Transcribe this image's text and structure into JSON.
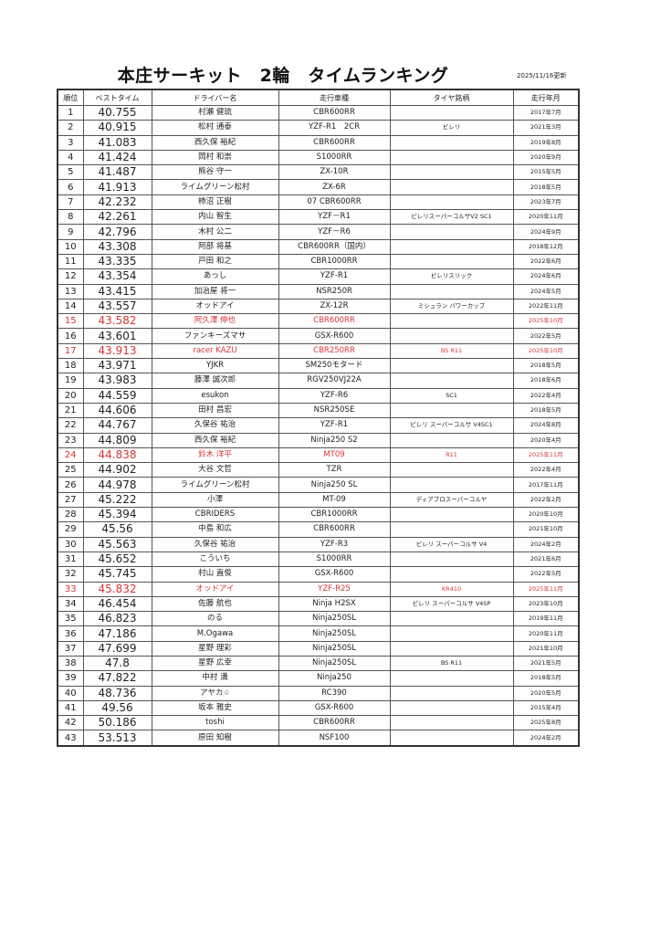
{
  "title": "本庄サーキット　2輪　タイムランキング",
  "updated": "2025/11/16更新",
  "highlight_color": "#d83434",
  "columns": [
    "順位",
    "ベストタイム",
    "ドライバー名",
    "走行車種",
    "タイヤ銘柄",
    "走行年月"
  ],
  "rows": [
    {
      "rank": "1",
      "time": "40.755",
      "driver": "村瀬 健琉",
      "bike": "CBR600RR",
      "tire": "",
      "date": "2017年7月",
      "highlight": false
    },
    {
      "rank": "2",
      "time": "40.915",
      "driver": "松村 通泰",
      "bike": "YZF-R1　2CR",
      "tire": "ピレリ",
      "date": "2021年3月",
      "highlight": false
    },
    {
      "rank": "3",
      "time": "41.083",
      "driver": "西久保 裕紀",
      "bike": "CBR600RR",
      "tire": "",
      "date": "2019年8月",
      "highlight": false
    },
    {
      "rank": "4",
      "time": "41.424",
      "driver": "岡村 和崇",
      "bike": "S1000RR",
      "tire": "",
      "date": "2020年9月",
      "highlight": false
    },
    {
      "rank": "5",
      "time": "41.487",
      "driver": "熊谷 守一",
      "bike": "ZX-10R",
      "tire": "",
      "date": "2015年5月",
      "highlight": false
    },
    {
      "rank": "6",
      "time": "41.913",
      "driver": "ライムグリーン松村",
      "bike": "ZX-6R",
      "tire": "",
      "date": "2018年5月",
      "highlight": false
    },
    {
      "rank": "7",
      "time": "42.232",
      "driver": "柿沼 正樹",
      "bike": "07 CBR600RR",
      "tire": "",
      "date": "2023年7月",
      "highlight": false
    },
    {
      "rank": "8",
      "time": "42.261",
      "driver": "内山 智生",
      "bike": "YZF－R1",
      "tire": "ピレリスーパーコルサV2 SC1",
      "date": "2020年11月",
      "highlight": false
    },
    {
      "rank": "9",
      "time": "42.796",
      "driver": "木村 公二",
      "bike": "YZF－R6",
      "tire": "",
      "date": "2024年9月",
      "highlight": false
    },
    {
      "rank": "10",
      "time": "43.308",
      "driver": "阿部 将基",
      "bike": "CBR600RR（国内）",
      "tire": "",
      "date": "2018年12月",
      "highlight": false
    },
    {
      "rank": "11",
      "time": "43.335",
      "driver": "戸田 和之",
      "bike": "CBR1000RR",
      "tire": "",
      "date": "2022年6月",
      "highlight": false
    },
    {
      "rank": "12",
      "time": "43.354",
      "driver": "あっし",
      "bike": "YZF-R1",
      "tire": "ピレリスリック",
      "date": "2024年6月",
      "highlight": false
    },
    {
      "rank": "13",
      "time": "43.415",
      "driver": "加治屋 将一",
      "bike": "NSR250R",
      "tire": "",
      "date": "2024年5月",
      "highlight": false
    },
    {
      "rank": "14",
      "time": "43.557",
      "driver": "オッドアイ",
      "bike": "ZX-12R",
      "tire": "ミシュラン パワーカップ",
      "date": "2022年11月",
      "highlight": false
    },
    {
      "rank": "15",
      "time": "43.582",
      "driver": "阿久澤 伸也",
      "bike": "CBR600RR",
      "tire": "",
      "date": "2025年10月",
      "highlight": true
    },
    {
      "rank": "16",
      "time": "43.601",
      "driver": "ファンキーズマサ",
      "bike": "GSX-R600",
      "tire": "",
      "date": "2022年5月",
      "highlight": false
    },
    {
      "rank": "17",
      "time": "43.913",
      "driver": "racer KAZU",
      "bike": "CBR250RR",
      "tire": "BS R11",
      "date": "2025年10月",
      "highlight": true
    },
    {
      "rank": "18",
      "time": "43.971",
      "driver": "YJKR",
      "bike": "SM250モタード",
      "tire": "",
      "date": "2018年5月",
      "highlight": false
    },
    {
      "rank": "19",
      "time": "43.983",
      "driver": "藤澤 誠次郎",
      "bike": "RGV250VJ22A",
      "tire": "",
      "date": "2018年6月",
      "highlight": false
    },
    {
      "rank": "20",
      "time": "44.559",
      "driver": "esukon",
      "bike": "YZF-R6",
      "tire": "SC1",
      "date": "2022年4月",
      "highlight": false
    },
    {
      "rank": "21",
      "time": "44.606",
      "driver": "田村 昌宏",
      "bike": "NSR250SE",
      "tire": "",
      "date": "2018年5月",
      "highlight": false
    },
    {
      "rank": "22",
      "time": "44.767",
      "driver": "久保谷 祐治",
      "bike": "YZF-R1",
      "tire": "ピレリ スーパーコルサ V4SC1",
      "date": "2024年8月",
      "highlight": false
    },
    {
      "rank": "23",
      "time": "44.809",
      "driver": "西久保 裕紀",
      "bike": "Ninja250 S2",
      "tire": "",
      "date": "2020年4月",
      "highlight": false
    },
    {
      "rank": "24",
      "time": "44.838",
      "driver": "鈴木 洋平",
      "bike": "MT09",
      "tire": "R11",
      "date": "2025年11月",
      "highlight": true
    },
    {
      "rank": "25",
      "time": "44.902",
      "driver": "大谷 文哲",
      "bike": "TZR",
      "tire": "",
      "date": "2022年4月",
      "highlight": false
    },
    {
      "rank": "26",
      "time": "44.978",
      "driver": "ライムグリーン松村",
      "bike": "Ninja250 SL",
      "tire": "",
      "date": "2017年11月",
      "highlight": false
    },
    {
      "rank": "27",
      "time": "45.222",
      "driver": "小澤",
      "bike": "MT-09",
      "tire": "ディアブロスーパーコルヤ",
      "date": "2022年2月",
      "highlight": false
    },
    {
      "rank": "28",
      "time": "45.394",
      "driver": "CBRIDERS",
      "bike": "CBR1000RR",
      "tire": "",
      "date": "2020年10月",
      "highlight": false
    },
    {
      "rank": "29",
      "time": "45.56",
      "driver": "中島 和広",
      "bike": "CBR600RR",
      "tire": "",
      "date": "2021年10月",
      "highlight": false
    },
    {
      "rank": "30",
      "time": "45.563",
      "driver": "久保谷 祐治",
      "bike": "YZF-R3",
      "tire": "ピレリ スーパーコルサ V4",
      "date": "2024年2月",
      "highlight": false
    },
    {
      "rank": "31",
      "time": "45.652",
      "driver": "こういち",
      "bike": "S1000RR",
      "tire": "",
      "date": "2021年6月",
      "highlight": false
    },
    {
      "rank": "32",
      "time": "45.745",
      "driver": "村山 直俊",
      "bike": "GSX-R600",
      "tire": "",
      "date": "2022年5月",
      "highlight": false
    },
    {
      "rank": "33",
      "time": "45.832",
      "driver": "オッドアイ",
      "bike": "YZF-R25",
      "tire": "KR410",
      "date": "2025年11月",
      "highlight": true
    },
    {
      "rank": "34",
      "time": "46.454",
      "driver": "佐藤 航也",
      "bike": "Ninja H2SX",
      "tire": "ピレリ スーパーコルサ V4SP",
      "date": "2023年10月",
      "highlight": false
    },
    {
      "rank": "35",
      "time": "46.823",
      "driver": "のる",
      "bike": "Ninja250SL",
      "tire": "",
      "date": "2019年11月",
      "highlight": false
    },
    {
      "rank": "36",
      "time": "47.186",
      "driver": "M.Ogawa",
      "bike": "Ninja250SL",
      "tire": "",
      "date": "2020年11月",
      "highlight": false
    },
    {
      "rank": "37",
      "time": "47.699",
      "driver": "星野 理彩",
      "bike": "Ninja250SL",
      "tire": "",
      "date": "2021年10月",
      "highlight": false
    },
    {
      "rank": "38",
      "time": "47.8",
      "driver": "星野 広幸",
      "bike": "Ninja250SL",
      "tire": "BS R11",
      "date": "2021年5月",
      "highlight": false
    },
    {
      "rank": "39",
      "time": "47.822",
      "driver": "中村 満",
      "bike": "Ninja250",
      "tire": "",
      "date": "2018年5月",
      "highlight": false
    },
    {
      "rank": "40",
      "time": "48.736",
      "driver": "アヤカ☆",
      "bike": "RC390",
      "tire": "",
      "date": "2020年5月",
      "highlight": false
    },
    {
      "rank": "41",
      "time": "49.56",
      "driver": "坂本 雅史",
      "bike": "GSX-R600",
      "tire": "",
      "date": "2015年4月",
      "highlight": false
    },
    {
      "rank": "42",
      "time": "50.186",
      "driver": "toshi",
      "bike": "CBR600RR",
      "tire": "",
      "date": "2025年8月",
      "highlight": false
    },
    {
      "rank": "43",
      "time": "53.513",
      "driver": "原田 知樹",
      "bike": "NSF100",
      "tire": "",
      "date": "2024年2月",
      "highlight": false
    }
  ]
}
